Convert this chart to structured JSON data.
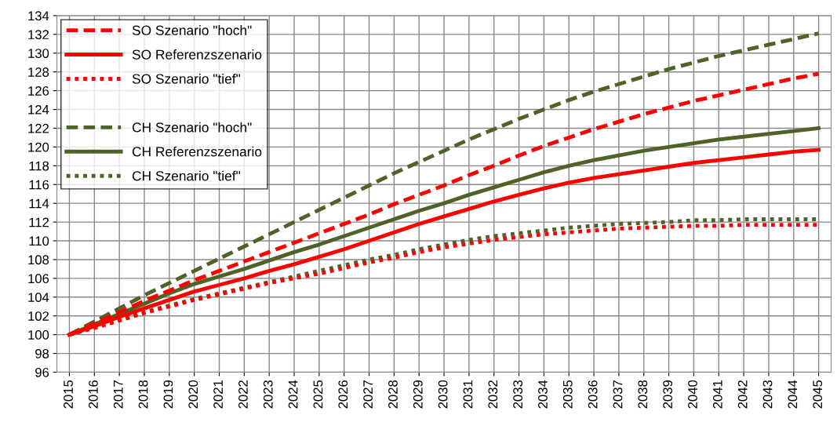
{
  "chart_data": {
    "type": "line",
    "categories": [
      "2015",
      "2016",
      "2017",
      "2018",
      "2019",
      "2020",
      "2021",
      "2022",
      "2023",
      "2024",
      "2025",
      "2026",
      "2027",
      "2028",
      "2029",
      "2030",
      "2031",
      "2032",
      "2033",
      "2034",
      "2035",
      "2036",
      "2037",
      "2038",
      "2039",
      "2040",
      "2041",
      "2042",
      "2043",
      "2044",
      "2045"
    ],
    "series": [
      {
        "name": "SO Szenario \"hoch\"",
        "color": "#ff0000",
        "line_style": "dashed",
        "values": [
          100,
          101.2,
          102.4,
          103.6,
          104.7,
          105.8,
          106.8,
          107.8,
          108.8,
          109.8,
          110.8,
          111.8,
          112.8,
          113.9,
          114.9,
          115.9,
          117.0,
          118.0,
          119.1,
          120.1,
          121.0,
          121.9,
          122.7,
          123.5,
          124.2,
          124.9,
          125.5,
          126.1,
          126.7,
          127.3,
          127.8
        ]
      },
      {
        "name": "SO Referenzszenario",
        "color": "#ff0000",
        "line_style": "solid",
        "values": [
          100,
          100.9,
          101.9,
          102.8,
          103.7,
          104.6,
          105.3,
          106.0,
          106.8,
          107.5,
          108.3,
          109.1,
          110.0,
          110.9,
          111.8,
          112.6,
          113.4,
          114.2,
          114.9,
          115.6,
          116.2,
          116.7,
          117.1,
          117.5,
          117.9,
          118.3,
          118.6,
          118.9,
          119.2,
          119.5,
          119.7
        ]
      },
      {
        "name": "SO Szenario \"tief\"",
        "color": "#ff0000",
        "line_style": "dotted",
        "values": [
          100,
          100.7,
          101.5,
          102.3,
          103.0,
          103.7,
          104.3,
          104.9,
          105.5,
          106.0,
          106.5,
          107.1,
          107.7,
          108.2,
          108.8,
          109.3,
          109.7,
          110.1,
          110.4,
          110.7,
          110.9,
          111.1,
          111.3,
          111.4,
          111.5,
          111.6,
          111.6,
          111.7,
          111.7,
          111.7,
          111.7
        ]
      },
      {
        "name": "CH Szenario \"hoch\"",
        "color": "#4f6228",
        "line_style": "dashed",
        "values": [
          100,
          101.4,
          102.8,
          104.2,
          105.5,
          106.8,
          108.1,
          109.4,
          110.7,
          112.0,
          113.3,
          114.6,
          115.9,
          117.2,
          118.4,
          119.6,
          120.8,
          121.9,
          123.0,
          124.0,
          125.0,
          125.9,
          126.7,
          127.5,
          128.3,
          129.0,
          129.7,
          130.3,
          130.9,
          131.5,
          132.1
        ]
      },
      {
        "name": "CH Referenzszenario",
        "color": "#4f6228",
        "line_style": "solid",
        "values": [
          100,
          101.1,
          102.2,
          103.3,
          104.4,
          105.4,
          106.2,
          107.0,
          107.9,
          108.8,
          109.6,
          110.5,
          111.4,
          112.3,
          113.2,
          114.0,
          114.9,
          115.7,
          116.5,
          117.3,
          118.0,
          118.6,
          119.1,
          119.6,
          120.0,
          120.4,
          120.8,
          121.1,
          121.4,
          121.7,
          122.0
        ]
      },
      {
        "name": "CH Szenario \"tief\"",
        "color": "#4f6228",
        "line_style": "dotted",
        "values": [
          100,
          100.8,
          101.6,
          102.4,
          103.1,
          103.8,
          104.4,
          105.0,
          105.6,
          106.2,
          106.8,
          107.4,
          108.0,
          108.5,
          109.1,
          109.6,
          110.1,
          110.5,
          110.8,
          111.1,
          111.4,
          111.6,
          111.8,
          111.9,
          112.0,
          112.2,
          112.2,
          112.3,
          112.3,
          112.3,
          112.3
        ]
      }
    ],
    "ylim": [
      96,
      134
    ],
    "yticks": [
      96,
      98,
      100,
      102,
      104,
      106,
      108,
      110,
      112,
      114,
      116,
      118,
      120,
      122,
      124,
      126,
      128,
      130,
      132,
      134
    ],
    "grid": true,
    "legend": "top left"
  }
}
